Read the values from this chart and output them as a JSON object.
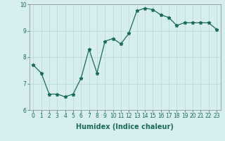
{
  "x": [
    0,
    1,
    2,
    3,
    4,
    5,
    6,
    7,
    8,
    9,
    10,
    11,
    12,
    13,
    14,
    15,
    16,
    17,
    18,
    19,
    20,
    21,
    22,
    23
  ],
  "y": [
    7.7,
    7.4,
    6.6,
    6.6,
    6.5,
    6.6,
    7.2,
    8.3,
    7.4,
    8.6,
    8.7,
    8.5,
    8.9,
    9.75,
    9.85,
    9.8,
    9.6,
    9.5,
    9.2,
    9.3,
    9.3,
    9.3,
    9.3,
    9.05
  ],
  "xlabel": "Humidex (Indice chaleur)",
  "ylim": [
    6,
    10
  ],
  "xlim_min": -0.5,
  "xlim_max": 23.5,
  "yticks": [
    6,
    7,
    8,
    9,
    10
  ],
  "xticks": [
    0,
    1,
    2,
    3,
    4,
    5,
    6,
    7,
    8,
    9,
    10,
    11,
    12,
    13,
    14,
    15,
    16,
    17,
    18,
    19,
    20,
    21,
    22,
    23
  ],
  "line_color": "#1a6b5a",
  "marker": "*",
  "markersize": 3.5,
  "linewidth": 0.9,
  "bg_color": "#d6eeee",
  "grid_color": "#b8d8d8",
  "tick_fontsize": 5.5,
  "xlabel_fontsize": 7.0,
  "fig_width": 3.2,
  "fig_height": 2.0,
  "dpi": 100
}
